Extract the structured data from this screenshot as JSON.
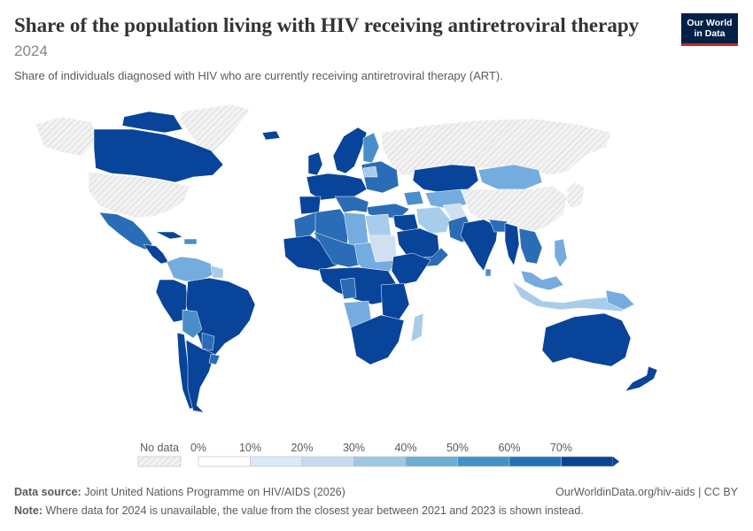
{
  "header": {
    "title": "Share of the population living with HIV receiving antiretroviral therapy",
    "year": "2024",
    "subtitle": "Share of individuals diagnosed with HIV who are currently receiving antiretroviral therapy (ART)."
  },
  "logo": {
    "line1": "Our World",
    "line2": "in Data"
  },
  "legend": {
    "no_data_label": "No data",
    "bins": [
      {
        "label": "0%",
        "color": "#ffffff"
      },
      {
        "label": "10%",
        "color": "#dce9f6"
      },
      {
        "label": "20%",
        "color": "#c6dbef"
      },
      {
        "label": "30%",
        "color": "#9ecae1"
      },
      {
        "label": "40%",
        "color": "#6baed6"
      },
      {
        "label": "50%",
        "color": "#4292c6"
      },
      {
        "label": "60%",
        "color": "#2171b5"
      },
      {
        "label": "70%",
        "color": "#084594"
      }
    ]
  },
  "colors": {
    "no_data": "#e6e6e6",
    "high": "#08449a",
    "mid_high": "#2b6cb6",
    "mid": "#4a8fca",
    "low_mid": "#74ace0",
    "low": "#a8cdea",
    "lowest": "#cfe0f2"
  },
  "footer": {
    "source_label": "Data source:",
    "source_text": "Joint United Nations Programme on HIV/AIDS (2026)",
    "url": "OurWorldinData.org/hiv-aids | CC BY",
    "note_label": "Note:",
    "note_text": "Where data for 2024 is unavailable, the value from the closest year between 2021 and 2023 is shown instead."
  }
}
